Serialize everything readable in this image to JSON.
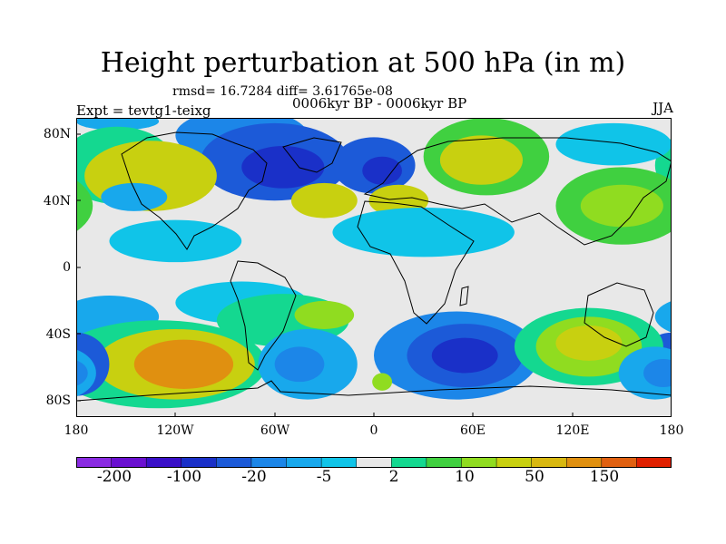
{
  "title": "Height perturbation at 500 hPa (in m)",
  "stats": "rmsd= 16.7284 diff= 3.61765e-08",
  "expt": "Expt = tevtg1-teixg",
  "period": "0006kyr BP - 0006kyr BP",
  "season": "JJA",
  "y_ticks": [
    "80N",
    "40N",
    "0",
    "40S",
    "80S"
  ],
  "x_ticks": [
    "180",
    "120W",
    "60W",
    "0",
    "60E",
    "120E",
    "180"
  ],
  "colorbar": {
    "colors": [
      "#8a2be2",
      "#6a10d0",
      "#3a10c8",
      "#1a30c8",
      "#1c5ad8",
      "#1c86e8",
      "#18a8ec",
      "#10c4e8",
      "#e8e8e8",
      "#14d890",
      "#40d040",
      "#90dc20",
      "#c8d010",
      "#d8b810",
      "#e09010",
      "#e06010",
      "#e02000"
    ],
    "labels": [
      "-200",
      "-100",
      "-20",
      "-5",
      "2",
      "10",
      "50",
      "150"
    ],
    "label_boundaries": [
      1,
      3,
      5,
      7,
      9,
      11,
      13,
      15
    ]
  },
  "map": {
    "background": "#e8e8e8",
    "blobs": [
      {
        "lon": -155,
        "lat": 83,
        "rx": 25,
        "ry": 5,
        "color": "#18a8ec",
        "name": "arctic-low-1"
      },
      {
        "lon": -80,
        "lat": 75,
        "rx": 40,
        "ry": 15,
        "color": "#1c86e8",
        "name": "arctic-low-2"
      },
      {
        "lon": -60,
        "lat": 60,
        "rx": 45,
        "ry": 22,
        "color": "#1c5ad8",
        "name": "north-atlantic-low"
      },
      {
        "lon": -55,
        "lat": 57,
        "rx": 25,
        "ry": 12,
        "color": "#1a30c8",
        "name": "north-atlantic-core"
      },
      {
        "lon": 0,
        "lat": 58,
        "rx": 25,
        "ry": 16,
        "color": "#1c5ad8",
        "name": "europe-low"
      },
      {
        "lon": 5,
        "lat": 55,
        "rx": 12,
        "ry": 8,
        "color": "#1a30c8",
        "name": "europe-core"
      },
      {
        "lon": 68,
        "lat": 63,
        "rx": 38,
        "ry": 22,
        "color": "#40d040",
        "name": "siberia-high"
      },
      {
        "lon": 65,
        "lat": 61,
        "rx": 25,
        "ry": 14,
        "color": "#c8d010",
        "name": "siberia-core"
      },
      {
        "lon": -155,
        "lat": 58,
        "rx": 35,
        "ry": 22,
        "color": "#14d890",
        "name": "pacific-high"
      },
      {
        "lon": -135,
        "lat": 52,
        "rx": 40,
        "ry": 20,
        "color": "#c8d010",
        "name": "pacific-high-core"
      },
      {
        "lon": -145,
        "lat": 40,
        "rx": 20,
        "ry": 8,
        "color": "#18a8ec",
        "name": "pacific-low"
      },
      {
        "lon": -120,
        "lat": 15,
        "rx": 40,
        "ry": 12,
        "color": "#10c4e8",
        "name": "east-pacific-low"
      },
      {
        "lon": -30,
        "lat": 38,
        "rx": 20,
        "ry": 10,
        "color": "#c8d010",
        "name": "atlantic-high"
      },
      {
        "lon": 15,
        "lat": 38,
        "rx": 18,
        "ry": 9,
        "color": "#c8d010",
        "name": "med-high"
      },
      {
        "lon": 30,
        "lat": 20,
        "rx": 55,
        "ry": 14,
        "color": "#10c4e8",
        "name": "africa-low"
      },
      {
        "lon": 145,
        "lat": 70,
        "rx": 35,
        "ry": 12,
        "color": "#10c4e8",
        "name": "east-siberia-low"
      },
      {
        "lon": 150,
        "lat": 35,
        "rx": 40,
        "ry": 22,
        "color": "#40d040",
        "name": "west-pacific-high"
      },
      {
        "lon": 150,
        "lat": 35,
        "rx": 25,
        "ry": 12,
        "color": "#90dc20",
        "name": "west-pacific-core"
      },
      {
        "lon": -80,
        "lat": -20,
        "rx": 40,
        "ry": 12,
        "color": "#10c4e8",
        "name": "south-america-low"
      },
      {
        "lon": -160,
        "lat": -28,
        "rx": 30,
        "ry": 12,
        "color": "#18a8ec",
        "name": "sw-pacific-low"
      },
      {
        "lon": -55,
        "lat": -30,
        "rx": 40,
        "ry": 15,
        "color": "#14d890",
        "name": "south-atlantic-high"
      },
      {
        "lon": -30,
        "lat": -27,
        "rx": 18,
        "ry": 8,
        "color": "#90dc20",
        "name": "south-atlantic-core"
      },
      {
        "lon": -130,
        "lat": -55,
        "rx": 65,
        "ry": 25,
        "color": "#14d890",
        "name": "se-pacific-high"
      },
      {
        "lon": -120,
        "lat": -55,
        "rx": 48,
        "ry": 20,
        "color": "#c8d010",
        "name": "se-pacific-mid"
      },
      {
        "lon": -115,
        "lat": -55,
        "rx": 30,
        "ry": 14,
        "color": "#e09010",
        "name": "se-pacific-core"
      },
      {
        "lon": -180,
        "lat": -55,
        "rx": 20,
        "ry": 18,
        "color": "#1c5ad8",
        "name": "dateline-low"
      },
      {
        "lon": -40,
        "lat": -55,
        "rx": 30,
        "ry": 20,
        "color": "#18a8ec",
        "name": "south-atlantic-low"
      },
      {
        "lon": -45,
        "lat": -55,
        "rx": 15,
        "ry": 10,
        "color": "#1c86e8",
        "name": "south-atlantic-low-core"
      },
      {
        "lon": 50,
        "lat": -50,
        "rx": 50,
        "ry": 25,
        "color": "#1c86e8",
        "name": "indian-low"
      },
      {
        "lon": 55,
        "lat": -50,
        "rx": 35,
        "ry": 18,
        "color": "#1c5ad8",
        "name": "indian-low-mid"
      },
      {
        "lon": 55,
        "lat": -50,
        "rx": 20,
        "ry": 10,
        "color": "#1a30c8",
        "name": "indian-low-core"
      },
      {
        "lon": 5,
        "lat": -65,
        "rx": 6,
        "ry": 5,
        "color": "#90dc20",
        "name": "weddell-high"
      },
      {
        "lon": 130,
        "lat": -45,
        "rx": 45,
        "ry": 22,
        "color": "#14d890",
        "name": "australia-high"
      },
      {
        "lon": 130,
        "lat": -45,
        "rx": 32,
        "ry": 17,
        "color": "#90dc20",
        "name": "australia-mid"
      },
      {
        "lon": 130,
        "lat": -43,
        "rx": 20,
        "ry": 10,
        "color": "#c8d010",
        "name": "australia-core"
      },
      {
        "lon": 170,
        "lat": -60,
        "rx": 22,
        "ry": 15,
        "color": "#18a8ec",
        "name": "ross-low"
      },
      {
        "lon": 175,
        "lat": -60,
        "rx": 12,
        "ry": 8,
        "color": "#1c86e8",
        "name": "ross-low-core"
      }
    ]
  }
}
